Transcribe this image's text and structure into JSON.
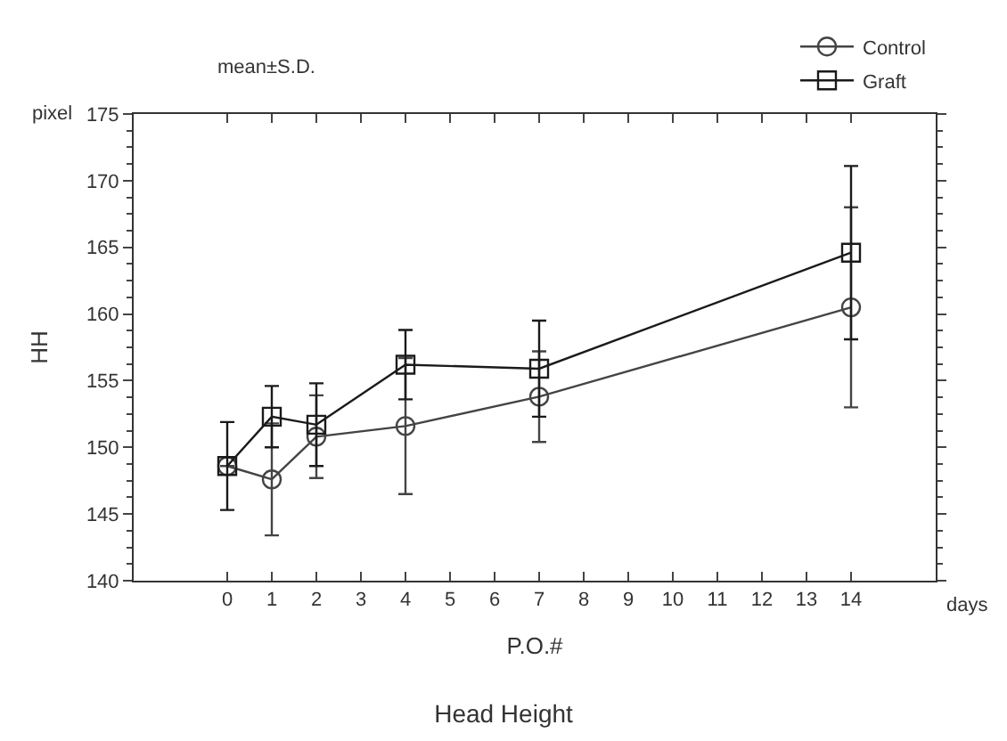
{
  "chart_data": {
    "type": "line",
    "title": "Head Height",
    "xlabel": "P.O.#",
    "ylabel": "HH",
    "annotations": [
      "pixel",
      "days",
      "mean±S.D."
    ],
    "x": [
      0,
      1,
      2,
      4,
      7,
      14
    ],
    "series": [
      {
        "name": "Control",
        "color": "#444444",
        "marker": "circle",
        "values": [
          148.6,
          147.6,
          150.8,
          151.6,
          153.8,
          160.5
        ],
        "errors": [
          null,
          4.2,
          3.1,
          5.1,
          3.4,
          7.5
        ]
      },
      {
        "name": "Graft",
        "color": "#1a1a1a",
        "marker": "square",
        "values": [
          148.6,
          152.3,
          151.7,
          156.2,
          155.9,
          164.6
        ],
        "errors": [
          3.3,
          2.3,
          3.1,
          2.6,
          3.6,
          6.5
        ]
      }
    ],
    "xlim": [
      -2.1,
      15.9
    ],
    "xticks": [
      0,
      1,
      2,
      3,
      4,
      5,
      6,
      7,
      8,
      9,
      10,
      11,
      12,
      13,
      14
    ],
    "ylim": [
      140,
      175
    ],
    "yticks": [
      140,
      145,
      150,
      155,
      160,
      165,
      170,
      175
    ],
    "legend": "top right",
    "line_style": "solid"
  }
}
